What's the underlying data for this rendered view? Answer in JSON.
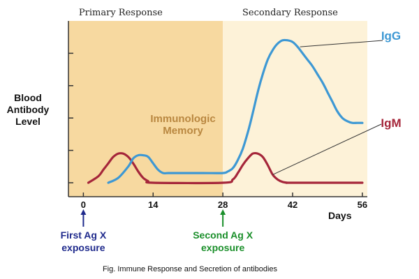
{
  "chart_data": {
    "type": "line",
    "panel_labels": [
      "Primary Response",
      "Secondary Response"
    ],
    "ylabel": [
      "Blood",
      "Antibody",
      "Level"
    ],
    "xlabel": "Days",
    "x_ticks": [
      0,
      14,
      28,
      42,
      56
    ],
    "xlim": [
      -3,
      57
    ],
    "ylim": [
      0,
      10
    ],
    "y_tick_positions": [
      0,
      2,
      4,
      6,
      8
    ],
    "memory_label": [
      "Immunologic",
      "Memory"
    ],
    "series": [
      {
        "name": "IgG",
        "color": "#3d98d4",
        "x": [
          5,
          7,
          9,
          10,
          11,
          12,
          13,
          14,
          15,
          16,
          17,
          19,
          24,
          28,
          29,
          30,
          31,
          32,
          33,
          34,
          35,
          36,
          37,
          38,
          39,
          40,
          41,
          42,
          43,
          44,
          45,
          46,
          47,
          48,
          49,
          50,
          51,
          52,
          53,
          54,
          55,
          56
        ],
        "values": [
          0,
          0.3,
          1.0,
          1.5,
          1.7,
          1.7,
          1.6,
          1.2,
          0.8,
          0.6,
          0.6,
          0.6,
          0.6,
          0.6,
          0.7,
          0.9,
          1.4,
          2.1,
          3.1,
          4.3,
          5.6,
          6.7,
          7.6,
          8.2,
          8.6,
          8.8,
          8.8,
          8.7,
          8.4,
          8.0,
          7.6,
          7.2,
          6.7,
          6.2,
          5.6,
          5.0,
          4.4,
          4.0,
          3.8,
          3.7,
          3.7,
          3.7
        ]
      },
      {
        "name": "IgM",
        "color": "#a5263a",
        "x": [
          1,
          3,
          4,
          5,
          6,
          7,
          8,
          9,
          10,
          11,
          12,
          13,
          14,
          28,
          30,
          31,
          32,
          33,
          34,
          35,
          36,
          37,
          38,
          39,
          40,
          41,
          42,
          56
        ],
        "values": [
          0,
          0.4,
          0.8,
          1.2,
          1.6,
          1.8,
          1.8,
          1.6,
          1.2,
          0.7,
          0.3,
          0.1,
          0,
          0,
          0.2,
          0.6,
          1.1,
          1.5,
          1.8,
          1.8,
          1.6,
          1.1,
          0.5,
          0.2,
          0.05,
          0,
          0,
          0
        ]
      }
    ],
    "series_labels": [
      "IgG",
      "IgM"
    ],
    "exposures": [
      {
        "day": 0,
        "label": [
          "First Ag X",
          "exposure"
        ],
        "color": "#1f2a8c"
      },
      {
        "day": 28,
        "label": [
          "Second Ag X",
          "exposure"
        ],
        "color": "#1a8f2a"
      }
    ],
    "caption": "Fig. Immune Response and Secretion of antibodies",
    "colors": {
      "primary_bg": "#f7d9a0",
      "secondary_bg": "#fdf2d8",
      "axis": "#333333",
      "memory_text": "#b98740"
    }
  }
}
